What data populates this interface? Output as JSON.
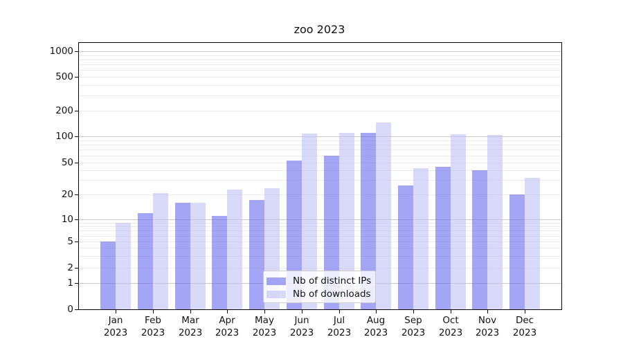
{
  "chart_data": {
    "type": "bar",
    "title": "zoo 2023",
    "yscale": "symlog",
    "grid": true,
    "ylim": [
      0,
      1250
    ],
    "y_ticks": [
      "0",
      "1",
      "2",
      "5",
      "10",
      "20",
      "50",
      "100",
      "200",
      "500",
      "1000"
    ],
    "categories": [
      "Jan 2023",
      "Feb 2023",
      "Mar 2023",
      "Apr 2023",
      "May 2023",
      "Jun 2023",
      "Jul 2023",
      "Aug 2023",
      "Sep 2023",
      "Oct 2023",
      "Nov 2023",
      "Dec 2023"
    ],
    "x_labels": [
      [
        "Jan",
        "2023"
      ],
      [
        "Feb",
        "2023"
      ],
      [
        "Mar",
        "2023"
      ],
      [
        "Apr",
        "2023"
      ],
      [
        "May",
        "2023"
      ],
      [
        "Jun",
        "2023"
      ],
      [
        "Jul",
        "2023"
      ],
      [
        "Aug",
        "2023"
      ],
      [
        "Sep",
        "2023"
      ],
      [
        "Oct",
        "2023"
      ],
      [
        "Nov",
        "2023"
      ],
      [
        "Dec",
        "2023"
      ]
    ],
    "series": [
      {
        "name": "Nb of distinct IPs",
        "color": "rgba(109,109,240,0.62)",
        "values": [
          5,
          12,
          16,
          11,
          17,
          52,
          60,
          110,
          26,
          44,
          40,
          20
        ]
      },
      {
        "name": "Nb of downloads",
        "color": "rgba(193,193,247,0.62)",
        "values": [
          9,
          21,
          16,
          23,
          24,
          108,
          110,
          145,
          42,
          105,
          103,
          32
        ]
      }
    ],
    "legend_position": "lower center (inside plot)"
  },
  "style_colors": {
    "bar_distinct_ips_rendered": "#a5a5f6",
    "bar_downloads_rendered": "#d8d8fa",
    "gridline_major": "#c9c9c9",
    "gridline_minor": "#ebebeb",
    "axis": "#000000"
  }
}
